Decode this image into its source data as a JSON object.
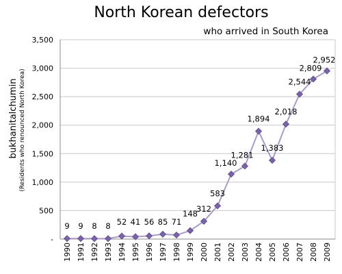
{
  "chart_data": {
    "type": "line",
    "title": "North Korean defectors",
    "subtitle": "who arrived in South Korea",
    "ylabel": "bukhanitalchumin",
    "ylabel_note": "(Residents who renounced North Korea)",
    "xlabel": "",
    "categories": [
      "1990",
      "1991",
      "1992",
      "1993",
      "1994",
      "1995",
      "1996",
      "1997",
      "1998",
      "1999",
      "2000",
      "2001",
      "2002",
      "2003",
      "2004",
      "2005",
      "2006",
      "2007",
      "2008",
      "2009"
    ],
    "series": [
      {
        "values": [
          9,
          9,
          8,
          8,
          52,
          41,
          56,
          85,
          71,
          148,
          312,
          583,
          1140,
          1281,
          1894,
          1383,
          2018,
          2544,
          2809,
          2952
        ],
        "labels": [
          "9",
          "9",
          "8",
          "8",
          "52",
          "41",
          "56",
          "85",
          "71",
          "148",
          "312",
          "583",
          "1,140",
          "1,281",
          "1,894",
          "1,383",
          "2,018",
          "2,544",
          "2,809",
          "2,952"
        ]
      }
    ],
    "ylim": [
      0,
      3500
    ],
    "yticks": [
      0,
      500,
      1000,
      1500,
      2000,
      2500,
      3000,
      3500
    ],
    "ytick_labels": [
      "-",
      "500",
      "1,000",
      "1,500",
      "2,000",
      "2,500",
      "3,000",
      "3,500"
    ],
    "grid": true,
    "colors": {
      "line": "#a99cc8",
      "marker": "#7a64a8",
      "grid": "#c8c8c8",
      "axis": "#888888"
    }
  }
}
